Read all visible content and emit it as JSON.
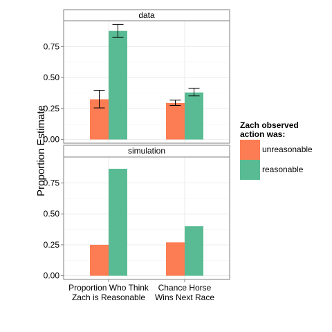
{
  "chart_data": {
    "type": "bar",
    "ylabel": "Proportion Estimate",
    "xlabel": "",
    "categories": [
      "Proportion Who Think\nZach is Reasonable",
      "Chance Horse\nWins Next Race"
    ],
    "ylim": [
      -0.03,
      0.96
    ],
    "yticks": [
      "0.00",
      "0.25",
      "0.50",
      "0.75"
    ],
    "grid": true,
    "legend_placement": "right",
    "legend": {
      "title": "Zach observed\naction was:",
      "entries": [
        {
          "name": "unreasonable",
          "color": "#fc7d53"
        },
        {
          "name": "reasonable",
          "color": "#59bb94"
        }
      ]
    },
    "panels": [
      {
        "strip": "data",
        "series": [
          {
            "name": "unreasonable",
            "color": "#fc7d53",
            "values": [
              0.325,
              0.295
            ],
            "err_low": [
              0.255,
              0.275
            ],
            "err_high": [
              0.398,
              0.318
            ]
          },
          {
            "name": "reasonable",
            "color": "#59bb94",
            "values": [
              0.878,
              0.38
            ],
            "err_low": [
              0.825,
              0.352
            ],
            "err_high": [
              0.93,
              0.415
            ]
          }
        ]
      },
      {
        "strip": "simulation",
        "series": [
          {
            "name": "unreasonable",
            "color": "#fc7d53",
            "values": [
              0.25,
              0.27
            ]
          },
          {
            "name": "reasonable",
            "color": "#59bb94",
            "values": [
              0.865,
              0.4
            ]
          }
        ]
      }
    ]
  }
}
